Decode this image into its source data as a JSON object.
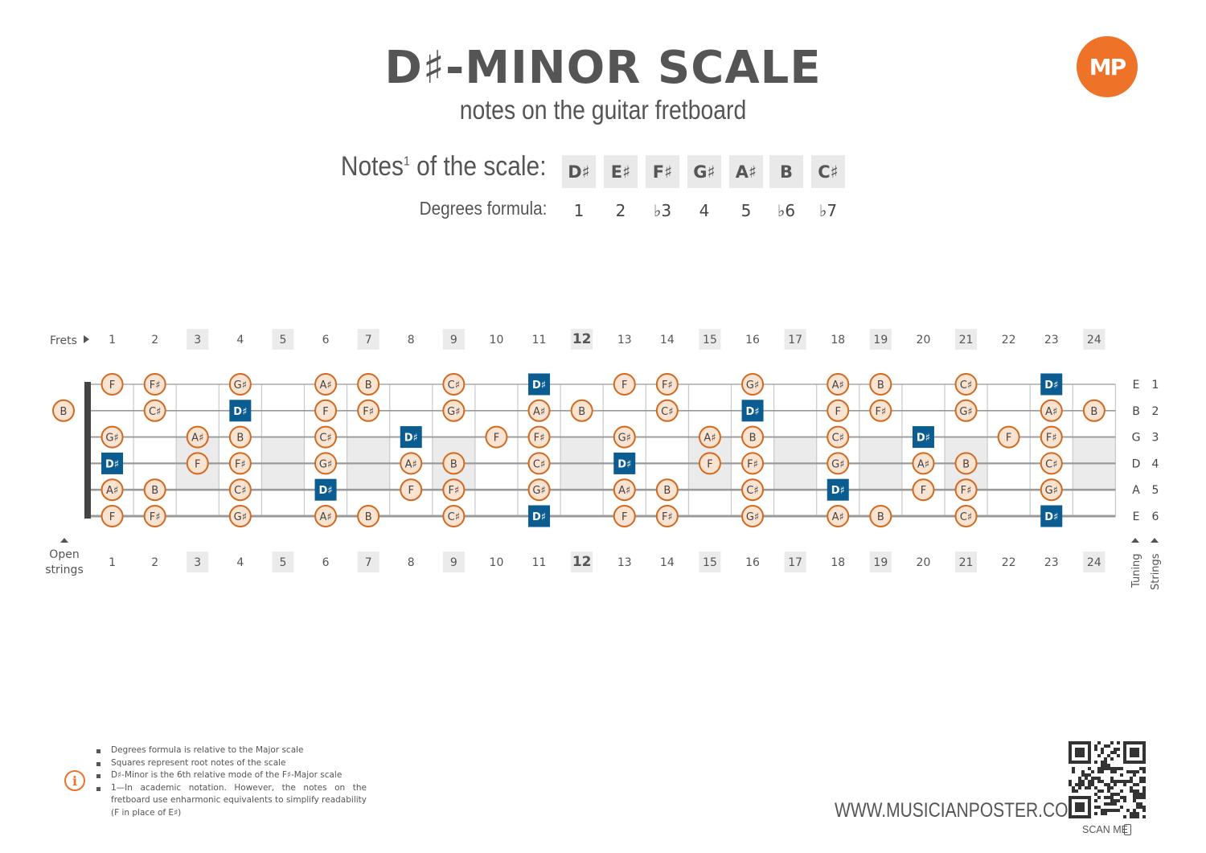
{
  "header": {
    "title": "D♯-MINOR SCALE",
    "subtitle": "notes on the guitar fretboard",
    "logo": "MP"
  },
  "scale": {
    "notes_label": "Notes",
    "notes_label_sup": "1",
    "notes_label_rest": " of the scale:",
    "degrees_label": "Degrees formula:",
    "notes": [
      "D♯",
      "E♯",
      "F♯",
      "G♯",
      "A♯",
      "B",
      "C♯"
    ],
    "degrees": [
      "1",
      "2",
      "♭3",
      "4",
      "5",
      "♭6",
      "♭7"
    ]
  },
  "fretboard": {
    "frets_label": "Frets",
    "open_strings_label": [
      "Open",
      "strings"
    ],
    "tuning_label": "Tuning",
    "strings_label": "Strings",
    "fret_numbers": [
      "1",
      "2",
      "3",
      "4",
      "5",
      "6",
      "7",
      "8",
      "9",
      "10",
      "11",
      "12",
      "13",
      "14",
      "15",
      "16",
      "17",
      "18",
      "19",
      "20",
      "21",
      "22",
      "23",
      "24"
    ],
    "highlighted_frets": [
      "3",
      "5",
      "7",
      "9",
      "12",
      "15",
      "17",
      "19",
      "21",
      "24"
    ],
    "tuning": [
      "E",
      "B",
      "G",
      "D",
      "A",
      "E"
    ],
    "string_numbers": [
      "1",
      "2",
      "3",
      "4",
      "5",
      "6"
    ],
    "open_notes": [
      "",
      "B",
      "",
      "",
      "",
      ""
    ],
    "root_note": "D♯",
    "string_notes": [
      [
        "F",
        "F♯",
        "",
        "G♯",
        "",
        "A♯",
        "B",
        "",
        "C♯",
        "",
        "D♯",
        "",
        "F",
        "F♯",
        "",
        "G♯",
        "",
        "A♯",
        "B",
        "",
        "C♯",
        "",
        "D♯",
        ""
      ],
      [
        "",
        "C♯",
        "",
        "D♯",
        "",
        "F",
        "F♯",
        "",
        "G♯",
        "",
        "A♯",
        "B",
        "",
        "C♯",
        "",
        "D♯",
        "",
        "F",
        "F♯",
        "",
        "G♯",
        "",
        "A♯",
        "B"
      ],
      [
        "G♯",
        "",
        "A♯",
        "B",
        "",
        "C♯",
        "",
        "D♯",
        "",
        "F",
        "F♯",
        "",
        "G♯",
        "",
        "A♯",
        "B",
        "",
        "C♯",
        "",
        "D♯",
        "",
        "F",
        "F♯",
        ""
      ],
      [
        "D♯",
        "",
        "F",
        "F♯",
        "",
        "G♯",
        "",
        "A♯",
        "B",
        "",
        "C♯",
        "",
        "D♯",
        "",
        "F",
        "F♯",
        "",
        "G♯",
        "",
        "A♯",
        "B",
        "",
        "C♯",
        ""
      ],
      [
        "A♯",
        "B",
        "",
        "C♯",
        "",
        "D♯",
        "",
        "F",
        "F♯",
        "",
        "G♯",
        "",
        "A♯",
        "B",
        "",
        "C♯",
        "",
        "D♯",
        "",
        "F",
        "F♯",
        "",
        "G♯",
        ""
      ],
      [
        "F",
        "F♯",
        "",
        "G♯",
        "",
        "A♯",
        "B",
        "",
        "C♯",
        "",
        "D♯",
        "",
        "F",
        "F♯",
        "",
        "G♯",
        "",
        "A♯",
        "B",
        "",
        "C♯",
        "",
        "D♯",
        ""
      ]
    ],
    "colors": {
      "note_fill": "#fbe3d1",
      "note_border": "#d2691e",
      "root_fill": "#0b5c91",
      "highlight_fill": "#ebebeb",
      "string": "#9a9a9a",
      "nut": "#444444"
    }
  },
  "footnotes": [
    "Degrees formula is relative to the Major scale",
    "Squares represent root notes of the scale",
    "D♯-Minor is the 6th relative mode of the F♯-Major scale",
    "1—In academic notation. However, the notes on the fretboard use enharmonic equivalents to simplify readability (F in place of E♯)"
  ],
  "website": "WWW.MUSICIANPOSTER.COM",
  "scan_me": "SCAN ME"
}
